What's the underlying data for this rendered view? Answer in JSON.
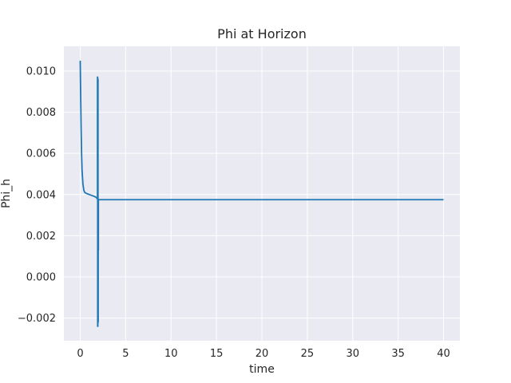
{
  "chart_data": {
    "type": "line",
    "title": "Phi at Horizon",
    "xlabel": "time",
    "ylabel": "Phi_h",
    "xlim": [
      -1.8,
      41.8
    ],
    "ylim": [
      -0.0031,
      0.0112
    ],
    "xticks": [
      0,
      5,
      10,
      15,
      20,
      25,
      30,
      35,
      40
    ],
    "yticks": [
      -0.002,
      0.0,
      0.002,
      0.004,
      0.006,
      0.008,
      0.01
    ],
    "xtick_labels": [
      "0",
      "5",
      "10",
      "15",
      "20",
      "25",
      "30",
      "35",
      "40"
    ],
    "ytick_labels": [
      "−0.002",
      "0.000",
      "0.002",
      "0.004",
      "0.006",
      "0.008",
      "0.010"
    ],
    "grid": true,
    "colors": {
      "background": "#eaeaf2",
      "grid": "#ffffff",
      "line": "#1f77b4",
      "text": "#262626"
    },
    "series": [
      {
        "x": [
          0.0,
          0.05,
          0.1,
          0.15,
          0.2,
          0.3,
          0.4,
          0.5,
          0.7,
          1.0,
          1.3,
          1.6,
          1.8,
          1.85,
          1.9,
          1.9,
          1.92,
          1.92,
          1.94,
          1.94,
          1.96,
          1.96,
          1.98,
          1.98,
          2.0,
          2.0,
          2.05,
          3.0,
          5.0,
          10.0,
          15.0,
          20.0,
          25.0,
          30.0,
          35.0,
          40.0
        ],
        "y": [
          0.0105,
          0.0088,
          0.0072,
          0.006,
          0.0052,
          0.0045,
          0.0042,
          0.0041,
          0.00405,
          0.004,
          0.00395,
          0.0039,
          0.00385,
          0.0038,
          0.0038,
          0.0097,
          0.0097,
          -0.0024,
          -0.0024,
          0.0096,
          0.0096,
          -0.0022,
          -0.0022,
          0.0013,
          0.0013,
          0.00375,
          0.00375,
          0.00375,
          0.00375,
          0.00375,
          0.00375,
          0.00375,
          0.00375,
          0.00375,
          0.00375,
          0.00375
        ]
      }
    ]
  }
}
